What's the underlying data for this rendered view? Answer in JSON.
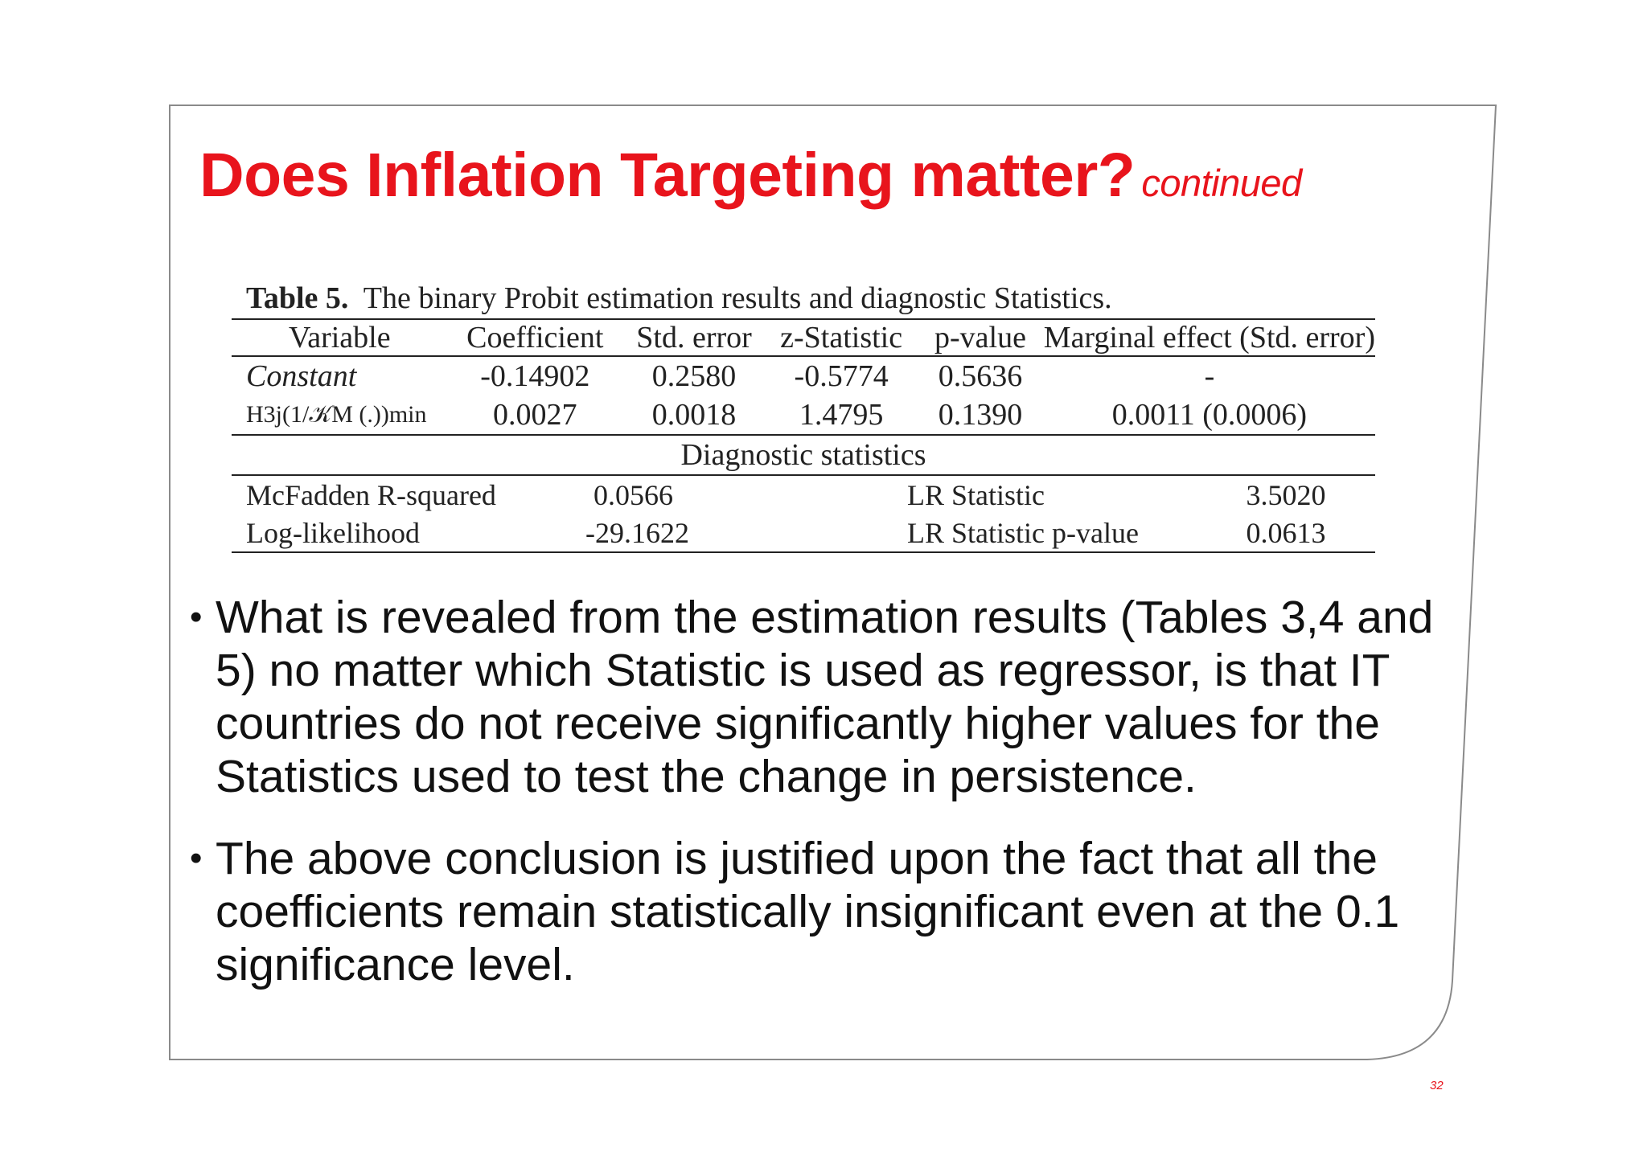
{
  "slide": {
    "title": "Does Inflation Targeting matter?",
    "title_suffix": "continued",
    "page_number": "32",
    "accent_color": "#e8141c"
  },
  "table": {
    "caption_label": "Table 5.",
    "caption_text": "The binary Probit estimation results and diagnostic Statistics.",
    "columns": [
      "Variable",
      "Coefficient",
      "Std. error",
      "z-Statistic",
      "p-value",
      "Marginal effect (Std. error)"
    ],
    "rows": [
      {
        "variable": "Constant",
        "coefficient": "-0.14902",
        "std_error": "0.2580",
        "z_statistic": "-0.5774",
        "p_value": "0.5636",
        "marginal_effect": "-"
      },
      {
        "variable": "H3j(1/𝒦M (.))min",
        "coefficient": "0.0027",
        "std_error": "0.0018",
        "z_statistic": "1.4795",
        "p_value": "0.1390",
        "marginal_effect": "0.0011 (0.0006)"
      }
    ],
    "diagnostic_title": "Diagnostic statistics",
    "diagnostics": [
      {
        "label": "McFadden R-squared",
        "value": "0.0566",
        "label2": "LR Statistic",
        "value2": "3.5020"
      },
      {
        "label": "Log-likelihood",
        "value": "-29.1622",
        "label2": "LR Statistic p-value",
        "value2": "0.0613"
      }
    ]
  },
  "bullets": [
    "What is revealed from the estimation results (Tables 3,4 and 5) no matter which Statistic is used as regressor, is that IT countries do not receive significantly higher values for the Statistics used to test the change in persistence.",
    "The above conclusion is justified upon the fact that all the coefficients remain statistically insignificant even at the 0.1 significance level."
  ]
}
